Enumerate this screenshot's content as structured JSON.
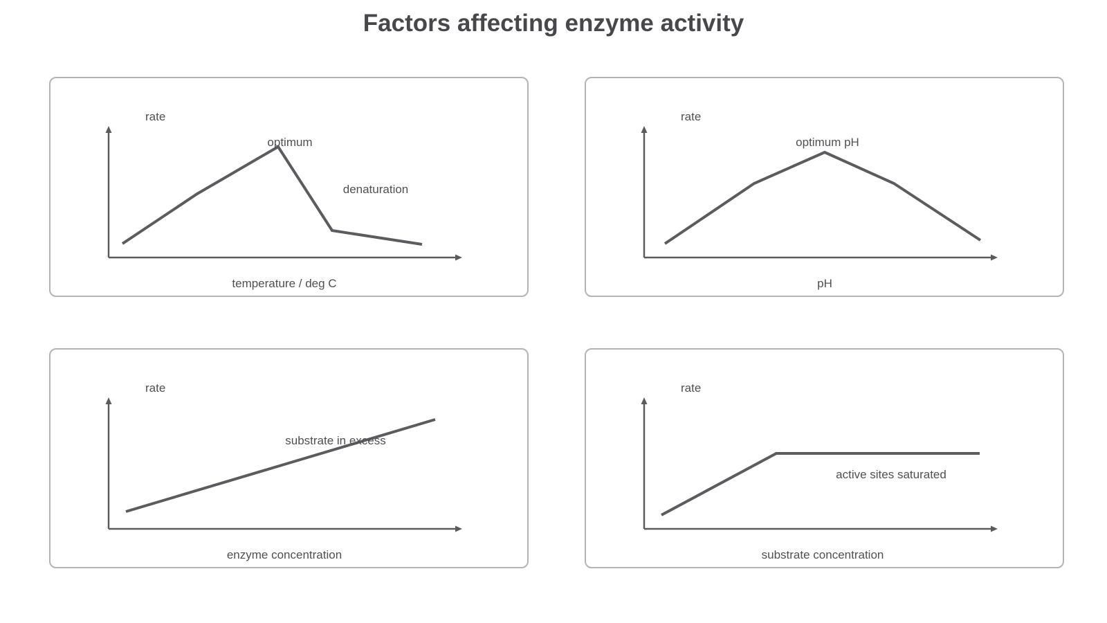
{
  "title": "Factors affecting enzyme activity",
  "panels": [
    {
      "id": "temperature",
      "y_label": "rate",
      "x_label": "temperature / deg C",
      "annotations": [
        "optimum",
        "denaturation"
      ]
    },
    {
      "id": "ph",
      "y_label": "rate",
      "x_label": "pH",
      "annotations": [
        "optimum pH"
      ]
    },
    {
      "id": "enzyme-concentration",
      "y_label": "rate",
      "x_label": "enzyme concentration",
      "annotations": [
        "substrate in excess"
      ]
    },
    {
      "id": "substrate-concentration",
      "y_label": "rate",
      "x_label": "substrate concentration",
      "annotations": [
        "active sites saturated"
      ]
    }
  ],
  "colors": {
    "line": "#5b5b60",
    "border": "#b3b3b6",
    "text": "#4a4a4e"
  }
}
